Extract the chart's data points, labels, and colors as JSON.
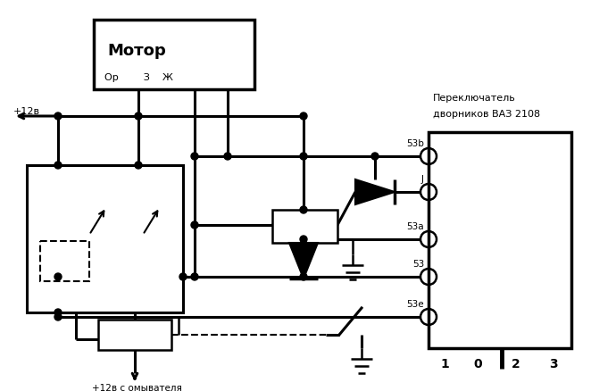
{
  "bg_color": "#ffffff",
  "motor_label": "Мотор",
  "motor_sub": "Ор        З    Ж",
  "switch_title1": "Переключатель",
  "switch_title2": "дворников ВАЗ 2108",
  "plus12v": "+12в",
  "plus12v_omyv": "+12в с омывателя",
  "pin_labels": [
    "53b",
    "J",
    "53a",
    "53",
    "53е"
  ],
  "switch_pos_labels": [
    "1",
    "0",
    "2",
    "3"
  ]
}
